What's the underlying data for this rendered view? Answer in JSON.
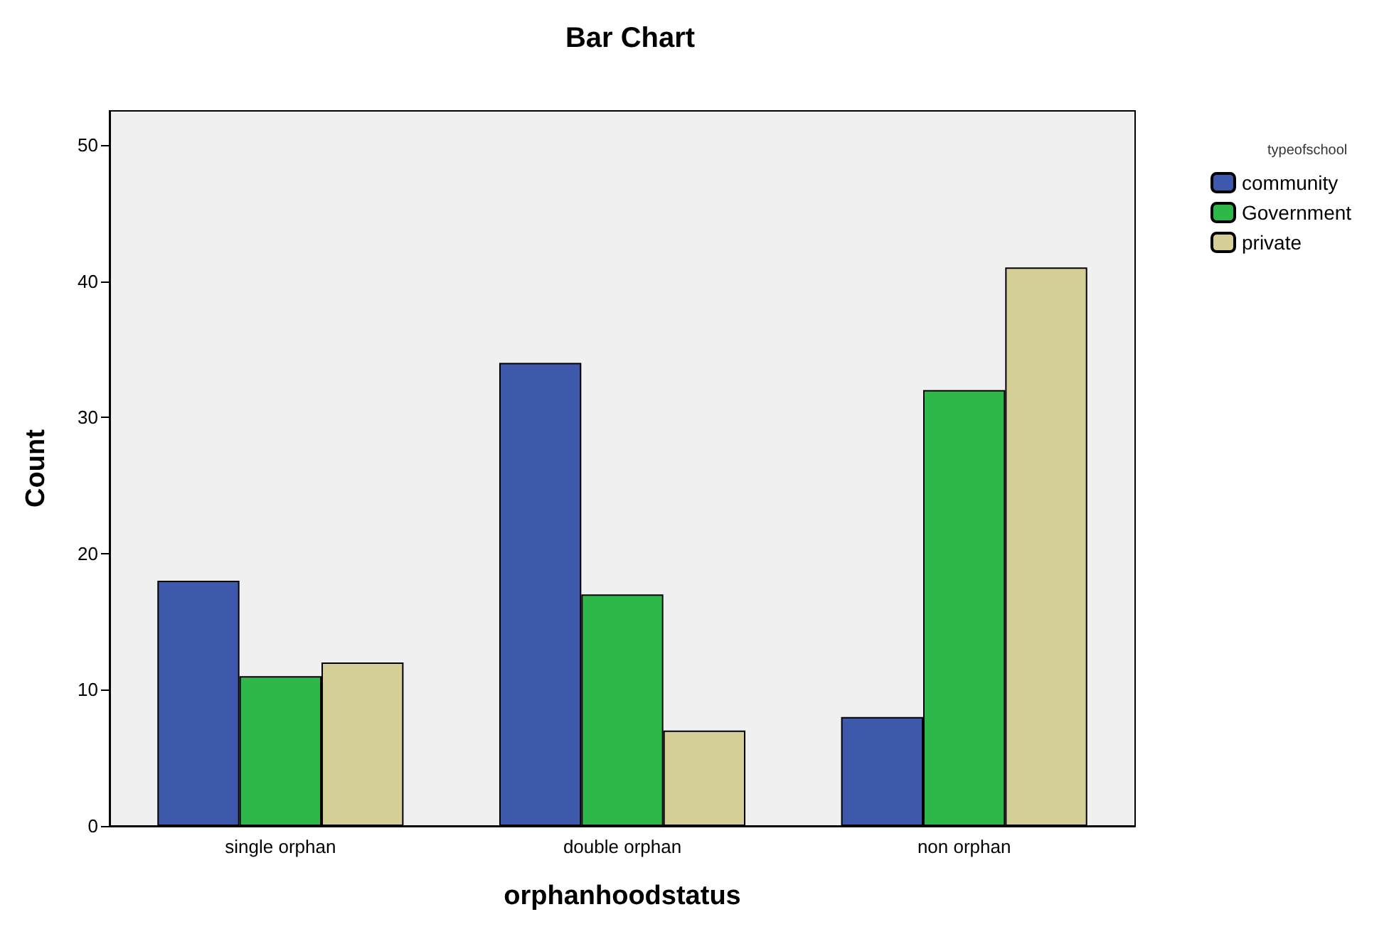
{
  "chart_data": {
    "type": "bar",
    "title": "Bar Chart",
    "xlabel": "orphanhoodstatus",
    "ylabel": "Count",
    "legend_title": "typeofschool",
    "categories": [
      "single orphan",
      "double orphan",
      "non orphan"
    ],
    "series": [
      {
        "name": "community",
        "color": "#3e58ac",
        "values": [
          18,
          34,
          8
        ]
      },
      {
        "name": "Government",
        "color": "#2fb84a",
        "values": [
          11,
          17,
          32
        ]
      },
      {
        "name": "private",
        "color": "#d4cf96",
        "values": [
          12,
          7,
          41
        ]
      }
    ],
    "ylim": [
      0,
      52.5
    ],
    "yticks": [
      0,
      10,
      20,
      30,
      40,
      50
    ],
    "grid": false,
    "legend": "top right"
  }
}
